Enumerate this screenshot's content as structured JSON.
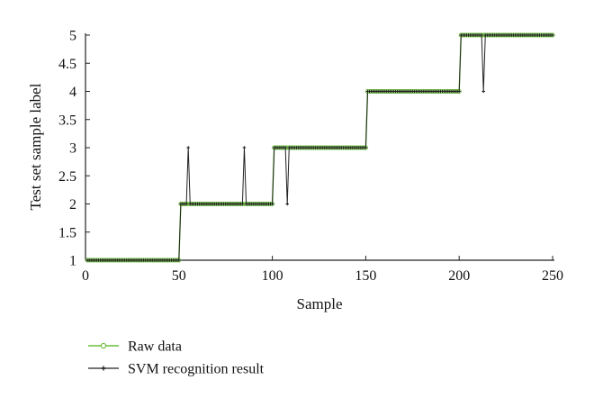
{
  "chart_data": {
    "type": "line",
    "xlabel": "Sample",
    "ylabel": "Test set sample label",
    "xlim": [
      0,
      250
    ],
    "ylim": [
      1,
      5
    ],
    "xticks": [
      0,
      50,
      100,
      150,
      200,
      250
    ],
    "yticks": [
      1,
      1.5,
      2,
      2.5,
      3,
      3.5,
      4,
      4.5,
      5
    ],
    "grid": false,
    "legend_position": "bottom-left, below plot",
    "series": [
      {
        "name": "Raw data",
        "color": "#6abf3a",
        "marker": "circle",
        "segments": [
          {
            "x_start": 1,
            "x_end": 50,
            "y": 1
          },
          {
            "x_start": 51,
            "x_end": 100,
            "y": 2
          },
          {
            "x_start": 101,
            "x_end": 150,
            "y": 3
          },
          {
            "x_start": 151,
            "x_end": 200,
            "y": 4
          },
          {
            "x_start": 201,
            "x_end": 250,
            "y": 5
          }
        ]
      },
      {
        "name": "SVM recognition result",
        "color": "#222222",
        "marker": "plus",
        "follows": "Raw data",
        "misclassified": [
          {
            "x": 55,
            "y": 3
          },
          {
            "x": 85,
            "y": 3
          },
          {
            "x": 108,
            "y": 2
          },
          {
            "x": 213,
            "y": 4
          }
        ]
      }
    ]
  }
}
